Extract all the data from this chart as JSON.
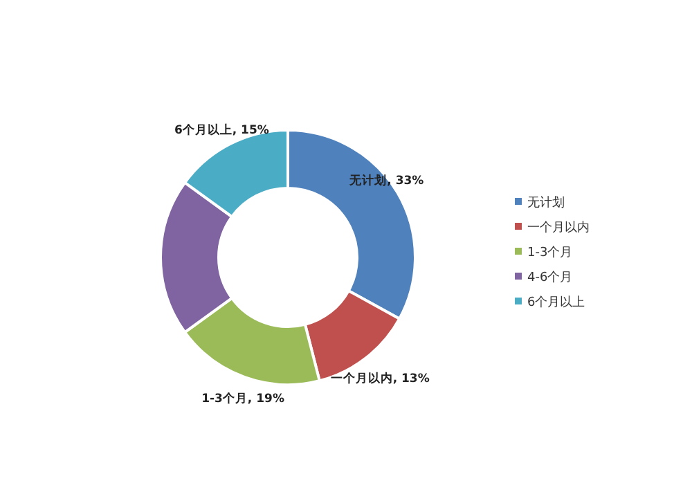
{
  "chart_data": {
    "type": "donut",
    "categories": [
      "无计划",
      "一个月以内",
      "1-3个月",
      "4-6个月",
      "6个月以上"
    ],
    "values": [
      33,
      13,
      19,
      20,
      15
    ],
    "colors": [
      "#4f81bd",
      "#c0504d",
      "#9bbb59",
      "#8064a2",
      "#4bacc6"
    ],
    "value_labels": [
      "无计划, 33%",
      "一个月以内, 13%",
      "1-3个月, 19%",
      null,
      "6个月以上, 15%"
    ],
    "legend": "right"
  }
}
